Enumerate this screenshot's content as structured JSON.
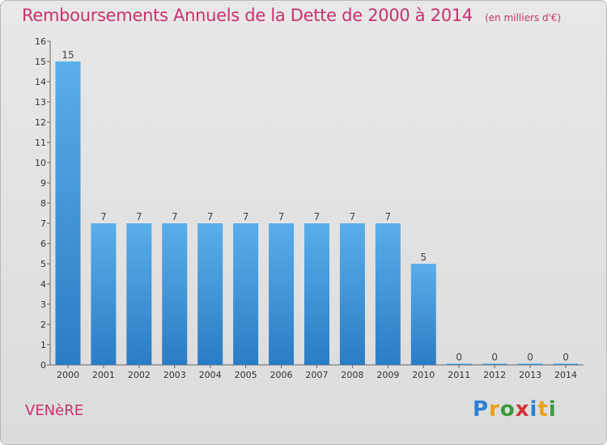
{
  "title": "Remboursements Annuels de la Dette de 2000 à 2014",
  "unit_note": "(en milliers d'€)",
  "commune": "VENèRE",
  "logo": {
    "letters": [
      "P",
      "r",
      "o",
      "x",
      "i",
      "t",
      "i"
    ],
    "colors": [
      "#2b7fd4",
      "#e8a21b",
      "#3a9a3a",
      "#d43030",
      "#2b7fd4",
      "#e8a21b",
      "#3a9a3a"
    ],
    "text": "Proxiti"
  },
  "colors": {
    "title": "#c8326e",
    "bar_light": "#5aaeea",
    "bar_dark": "#2a7cc4"
  },
  "chart_data": {
    "type": "bar",
    "categories": [
      "2000",
      "2001",
      "2002",
      "2003",
      "2004",
      "2005",
      "2006",
      "2007",
      "2008",
      "2009",
      "2010",
      "2011",
      "2012",
      "2013",
      "2014"
    ],
    "values": [
      15,
      7,
      7,
      7,
      7,
      7,
      7,
      7,
      7,
      7,
      5,
      0,
      0,
      0,
      0
    ],
    "ylim": [
      0,
      16
    ],
    "yticks": [
      0,
      1,
      2,
      3,
      4,
      5,
      6,
      7,
      8,
      9,
      10,
      11,
      12,
      13,
      14,
      15,
      16
    ],
    "grid": false,
    "data_labels": true
  }
}
